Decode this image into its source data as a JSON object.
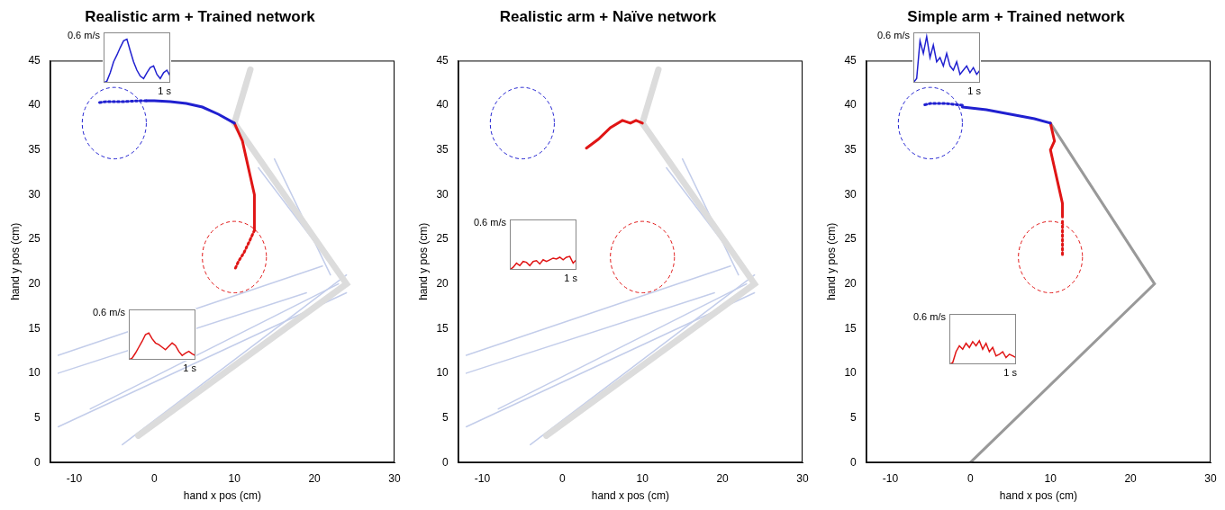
{
  "chart_data": [
    {
      "type": "line",
      "title": "Realistic arm + Trained network",
      "x_label": "hand x pos (cm)",
      "y_label": "hand y pos (cm)",
      "xlim": [
        -13,
        30
      ],
      "xticks": [
        -10,
        0,
        10,
        20,
        30
      ],
      "ylim": [
        0,
        45
      ],
      "yticks": [
        0,
        5,
        10,
        15,
        20,
        25,
        30,
        35,
        40,
        45
      ],
      "grid": false,
      "muscles": {
        "color": "#c3cdea",
        "lines": [
          {
            "x": [
              -12,
              21
            ],
            "y": [
              12,
              22
            ]
          },
          {
            "x": [
              -12,
              19
            ],
            "y": [
              10,
              19
            ]
          },
          {
            "x": [
              -8,
              23
            ],
            "y": [
              6,
              20
            ]
          },
          {
            "x": [
              -4,
              24
            ],
            "y": [
              2,
              21
            ]
          },
          {
            "x": [
              -12,
              24
            ],
            "y": [
              4,
              19
            ]
          },
          {
            "x": [
              22,
              15
            ],
            "y": [
              21,
              34
            ]
          },
          {
            "x": [
              24,
              13
            ],
            "y": [
              20,
              33
            ]
          }
        ]
      },
      "bones": {
        "color": "#dcdcdc",
        "x": [
          -2,
          24,
          10,
          12
        ],
        "y": [
          3,
          20,
          38,
          44
        ]
      },
      "targets": [
        {
          "x": -5,
          "y": 38,
          "radius": 4,
          "color": "#2020d0",
          "line_style": "dashed"
        },
        {
          "x": 10,
          "y": 23,
          "radius": 4,
          "color": "#e01515",
          "line_style": "dashed"
        }
      ],
      "series": [
        {
          "color": "#2020d0",
          "line_style": "solid",
          "x": [
            10,
            8,
            6,
            4,
            2,
            0,
            -1
          ],
          "y": [
            38,
            39,
            39.8,
            40.2,
            40.4,
            40.5,
            40.5
          ]
        },
        {
          "color": "#2020d0",
          "line_style": "dotted",
          "x": [
            -1,
            -2,
            -4,
            -6,
            -7
          ],
          "y": [
            40.5,
            40.5,
            40.4,
            40.4,
            40.3
          ]
        },
        {
          "color": "#e01515",
          "line_style": "solid",
          "x": [
            10,
            11,
            11.5,
            12,
            12.5,
            12.5,
            12.5
          ],
          "y": [
            38,
            36,
            34,
            32,
            30,
            28,
            26
          ]
        },
        {
          "color": "#e01515",
          "line_style": "dotted",
          "x": [
            12.5,
            12,
            11.2,
            10.5,
            10
          ],
          "y": [
            26,
            25,
            23.5,
            22.5,
            21.5
          ]
        }
      ],
      "insets": [
        {
          "type": "line",
          "y_label": "0.6 m/s",
          "x_label": "1 s",
          "xlim": [
            0,
            1
          ],
          "ylim": [
            0,
            0.6
          ],
          "tick_labels": false,
          "color": "#2020d0",
          "x": [
            0,
            0.05,
            0.1,
            0.15,
            0.2,
            0.25,
            0.3,
            0.35,
            0.4,
            0.45,
            0.5,
            0.55,
            0.6,
            0.65,
            0.7,
            0.75,
            0.8,
            0.85,
            0.9,
            0.95,
            1
          ],
          "values": [
            0,
            0.02,
            0.12,
            0.25,
            0.33,
            0.42,
            0.5,
            0.52,
            0.38,
            0.25,
            0.15,
            0.08,
            0.05,
            0.12,
            0.18,
            0.2,
            0.1,
            0.05,
            0.12,
            0.15,
            0.08
          ]
        },
        {
          "type": "line",
          "y_label": "0.6 m/s",
          "x_label": "1 s",
          "xlim": [
            0,
            1
          ],
          "ylim": [
            0,
            0.6
          ],
          "tick_labels": false,
          "color": "#e01515",
          "x": [
            0,
            0.05,
            0.1,
            0.15,
            0.2,
            0.25,
            0.3,
            0.35,
            0.4,
            0.45,
            0.5,
            0.55,
            0.6,
            0.65,
            0.7,
            0.75,
            0.8,
            0.85,
            0.9,
            0.95,
            1
          ],
          "values": [
            0,
            0.02,
            0.08,
            0.15,
            0.22,
            0.3,
            0.32,
            0.25,
            0.2,
            0.18,
            0.15,
            0.12,
            0.16,
            0.2,
            0.17,
            0.1,
            0.05,
            0.08,
            0.1,
            0.07,
            0.05
          ]
        }
      ]
    },
    {
      "type": "line",
      "title": "Realistic arm + Naïve network",
      "x_label": "hand x pos (cm)",
      "y_label": "hand y pos (cm)",
      "xlim": [
        -13,
        30
      ],
      "xticks": [
        -10,
        0,
        10,
        20,
        30
      ],
      "ylim": [
        0,
        45
      ],
      "yticks": [
        0,
        5,
        10,
        15,
        20,
        25,
        30,
        35,
        40,
        45
      ],
      "grid": false,
      "muscles": {
        "color": "#c3cdea",
        "lines": [
          {
            "x": [
              -12,
              21
            ],
            "y": [
              12,
              22
            ]
          },
          {
            "x": [
              -12,
              19
            ],
            "y": [
              10,
              19
            ]
          },
          {
            "x": [
              -8,
              23
            ],
            "y": [
              6,
              20
            ]
          },
          {
            "x": [
              -4,
              24
            ],
            "y": [
              2,
              21
            ]
          },
          {
            "x": [
              -12,
              24
            ],
            "y": [
              4,
              19
            ]
          },
          {
            "x": [
              22,
              15
            ],
            "y": [
              21,
              34
            ]
          },
          {
            "x": [
              24,
              13
            ],
            "y": [
              20,
              33
            ]
          }
        ]
      },
      "bones": {
        "color": "#dcdcdc",
        "x": [
          -2,
          24,
          10,
          12
        ],
        "y": [
          3,
          20,
          38,
          44
        ]
      },
      "targets": [
        {
          "x": -5,
          "y": 38,
          "radius": 4,
          "color": "#2020d0",
          "line_style": "dashed"
        },
        {
          "x": 10,
          "y": 23,
          "radius": 4,
          "color": "#e01515",
          "line_style": "dashed"
        }
      ],
      "series": [
        {
          "color": "#e01515",
          "line_style": "solid",
          "x": [
            10,
            9.2,
            8.5,
            7.5,
            6,
            4.5,
            3
          ],
          "y": [
            38,
            38.3,
            38,
            38.3,
            37.5,
            36.2,
            35.2
          ]
        }
      ],
      "insets": [
        {
          "type": "line",
          "y_label": "0.6 m/s",
          "x_label": "1 s",
          "xlim": [
            0,
            1
          ],
          "ylim": [
            0,
            0.6
          ],
          "tick_labels": false,
          "color": "#e01515",
          "x": [
            0,
            0.05,
            0.1,
            0.15,
            0.2,
            0.25,
            0.3,
            0.35,
            0.4,
            0.45,
            0.5,
            0.55,
            0.6,
            0.65,
            0.7,
            0.75,
            0.8,
            0.85,
            0.9,
            0.95,
            1
          ],
          "values": [
            0,
            0.03,
            0.08,
            0.05,
            0.1,
            0.09,
            0.05,
            0.1,
            0.11,
            0.07,
            0.12,
            0.1,
            0.12,
            0.14,
            0.13,
            0.15,
            0.12,
            0.15,
            0.16,
            0.08,
            0.12
          ]
        }
      ]
    },
    {
      "type": "line",
      "title": "Simple arm + Trained network",
      "x_label": "hand x pos (cm)",
      "y_label": "hand y pos (cm)",
      "xlim": [
        -13,
        30
      ],
      "xticks": [
        -10,
        0,
        10,
        20,
        30
      ],
      "ylim": [
        0,
        45
      ],
      "yticks": [
        0,
        5,
        10,
        15,
        20,
        25,
        30,
        35,
        40,
        45
      ],
      "grid": false,
      "bones": {
        "color": "#999999",
        "x": [
          0,
          23,
          10
        ],
        "y": [
          0,
          20,
          38
        ]
      },
      "targets": [
        {
          "x": -5,
          "y": 38,
          "radius": 4,
          "color": "#2020d0",
          "line_style": "dashed"
        },
        {
          "x": 10,
          "y": 23,
          "radius": 4,
          "color": "#e01515",
          "line_style": "dashed"
        }
      ],
      "series": [
        {
          "color": "#2020d0",
          "line_style": "solid",
          "x": [
            10,
            8,
            5,
            2,
            0,
            -1
          ],
          "y": [
            38,
            38.5,
            39,
            39.5,
            39.7,
            39.8
          ]
        },
        {
          "color": "#2020d0",
          "line_style": "dotted",
          "x": [
            -1,
            -3,
            -5,
            -6
          ],
          "y": [
            40,
            40.2,
            40.2,
            40
          ]
        },
        {
          "color": "#e01515",
          "line_style": "solid",
          "x": [
            10,
            10.5,
            10,
            10.5,
            11,
            11.5,
            11.5
          ],
          "y": [
            38,
            36,
            35,
            33,
            31,
            29,
            27.5
          ]
        },
        {
          "color": "#e01515",
          "line_style": "dotted",
          "x": [
            11.5,
            11.5,
            11.5
          ],
          "y": [
            27,
            25.5,
            23
          ]
        }
      ],
      "insets": [
        {
          "type": "line",
          "y_label": "0.6 m/s",
          "x_label": "1 s",
          "xlim": [
            0,
            1
          ],
          "ylim": [
            0,
            0.6
          ],
          "tick_labels": false,
          "color": "#2020d0",
          "x": [
            0,
            0.05,
            0.1,
            0.15,
            0.2,
            0.25,
            0.3,
            0.35,
            0.4,
            0.45,
            0.5,
            0.55,
            0.6,
            0.65,
            0.7,
            0.75,
            0.8,
            0.85,
            0.9,
            0.95,
            1
          ],
          "values": [
            0,
            0.05,
            0.5,
            0.35,
            0.55,
            0.3,
            0.45,
            0.25,
            0.3,
            0.2,
            0.35,
            0.2,
            0.15,
            0.25,
            0.1,
            0.15,
            0.2,
            0.12,
            0.18,
            0.1,
            0.15
          ]
        },
        {
          "type": "line",
          "y_label": "0.6 m/s",
          "x_label": "1 s",
          "xlim": [
            0,
            1
          ],
          "ylim": [
            0,
            0.6
          ],
          "tick_labels": false,
          "color": "#e01515",
          "x": [
            0,
            0.05,
            0.1,
            0.15,
            0.2,
            0.25,
            0.3,
            0.35,
            0.4,
            0.45,
            0.5,
            0.55,
            0.6,
            0.65,
            0.7,
            0.75,
            0.8,
            0.85,
            0.9,
            0.95,
            1
          ],
          "values": [
            0,
            0.02,
            0.15,
            0.22,
            0.18,
            0.25,
            0.2,
            0.27,
            0.22,
            0.28,
            0.18,
            0.25,
            0.15,
            0.2,
            0.1,
            0.12,
            0.15,
            0.08,
            0.12,
            0.1,
            0.08
          ]
        }
      ]
    }
  ]
}
